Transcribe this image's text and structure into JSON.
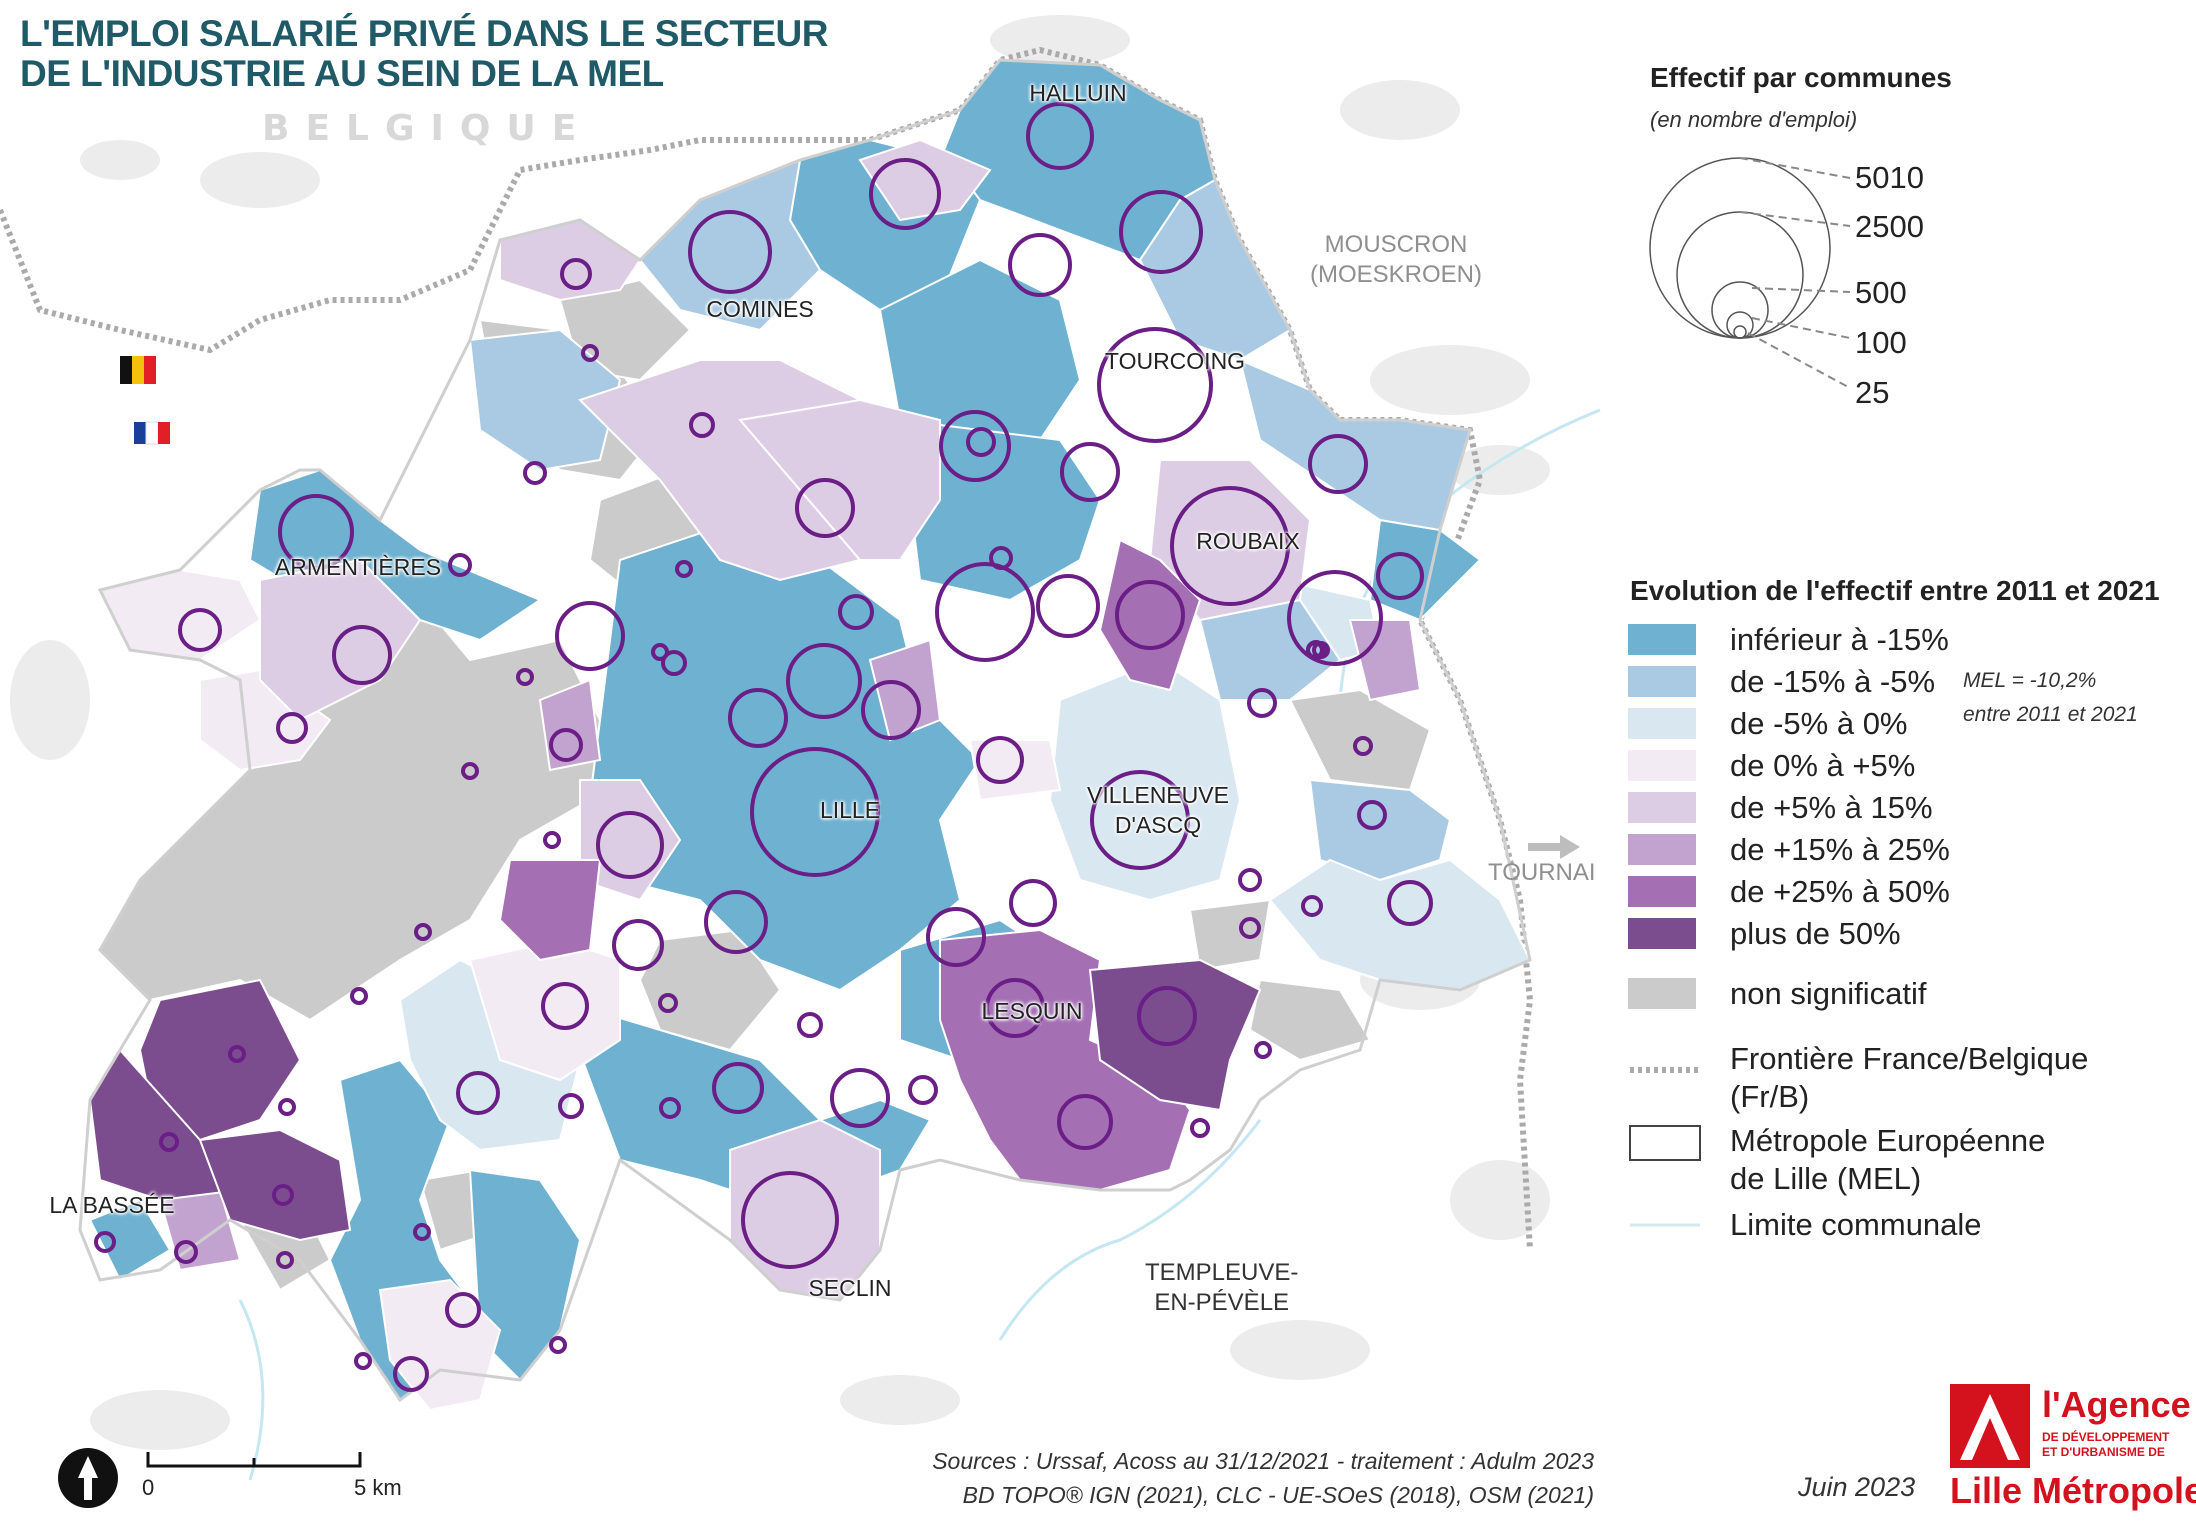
{
  "title": {
    "line1": "L'EMPLOI SALARIÉ PRIVÉ DANS LE SECTEUR",
    "line2": "DE L'INDUSTRIE AU SEIN DE LA MEL"
  },
  "country_label": "BELGIQUE",
  "external_labels": {
    "mouscron_1": "MOUSCRON",
    "mouscron_2": "(MOESKROEN)",
    "tournai": "TOURNAI",
    "templeuve_1": "TEMPLEUVE-",
    "templeuve_2": "EN-PÉVÈLE"
  },
  "cities": {
    "halluin": "HALLUIN",
    "comines": "COMINES",
    "tourcoing": "TOURCOING",
    "roubaix": "ROUBAIX",
    "armentieres": "ARMENTIÈRES",
    "lille": "LILLE",
    "villeneuve_1": "VILLENEUVE",
    "villeneuve_2": "D'ASCQ",
    "lesquin": "LESQUIN",
    "la_bassee": "LA BASSÉE",
    "seclin": "SECLIN"
  },
  "size_legend": {
    "title": "Effectif par communes",
    "subtitle": "(en nombre d'emploi)",
    "values": [
      "5010",
      "2500",
      "500",
      "100",
      "25"
    ]
  },
  "evolution_legend": {
    "title": "Evolution de l'effectif entre 2011 et 2021",
    "classes": [
      {
        "label": "inférieur à -15%",
        "color": "#6fb1d1"
      },
      {
        "label": "de -15% à -5%",
        "color": "#a9cae2"
      },
      {
        "label": "de -5% à 0%",
        "color": "#d9e7f1"
      },
      {
        "label": "de 0% à +5%",
        "color": "#f3ebf4"
      },
      {
        "label": "de +5% à 15%",
        "color": "#ddcde4"
      },
      {
        "label": "de +15% à 25%",
        "color": "#c2a3cf"
      },
      {
        "label": "de +25% à 50%",
        "color": "#a56fb4"
      },
      {
        "label": "plus de 50%",
        "color": "#7b4d8f"
      }
    ],
    "non_significant": {
      "label": "non significatif",
      "color": "#cbcbcb"
    },
    "mel_note_1": "MEL = -10,2%",
    "mel_note_2": "entre 2011 et 2021"
  },
  "line_legend": {
    "border_1": "Frontière France/Belgique",
    "border_2": "(Fr/B)",
    "mel_1": "Métropole Européenne",
    "mel_2": "de Lille (MEL)",
    "communal": "Limite communale"
  },
  "scale_bar": {
    "zero": "0",
    "five": "5 km"
  },
  "sources": {
    "line1": "Sources :  Urssaf, Acoss au 31/12/2021 - traitement : Adulm 2023",
    "line2": "BD TOPO® IGN (2021), CLC - UE-SOeS (2018), OSM (2021)"
  },
  "date": "Juin 2023",
  "logo": {
    "line1": "l'Agence",
    "line2a": "DE DÉVELOPPEMENT",
    "line2b": "ET D'URBANISME DE",
    "line3": "Lille Métropole"
  },
  "colors": {
    "bubble": "#6a1e86",
    "title": "#1f5a66",
    "logo": "#d3121d"
  }
}
